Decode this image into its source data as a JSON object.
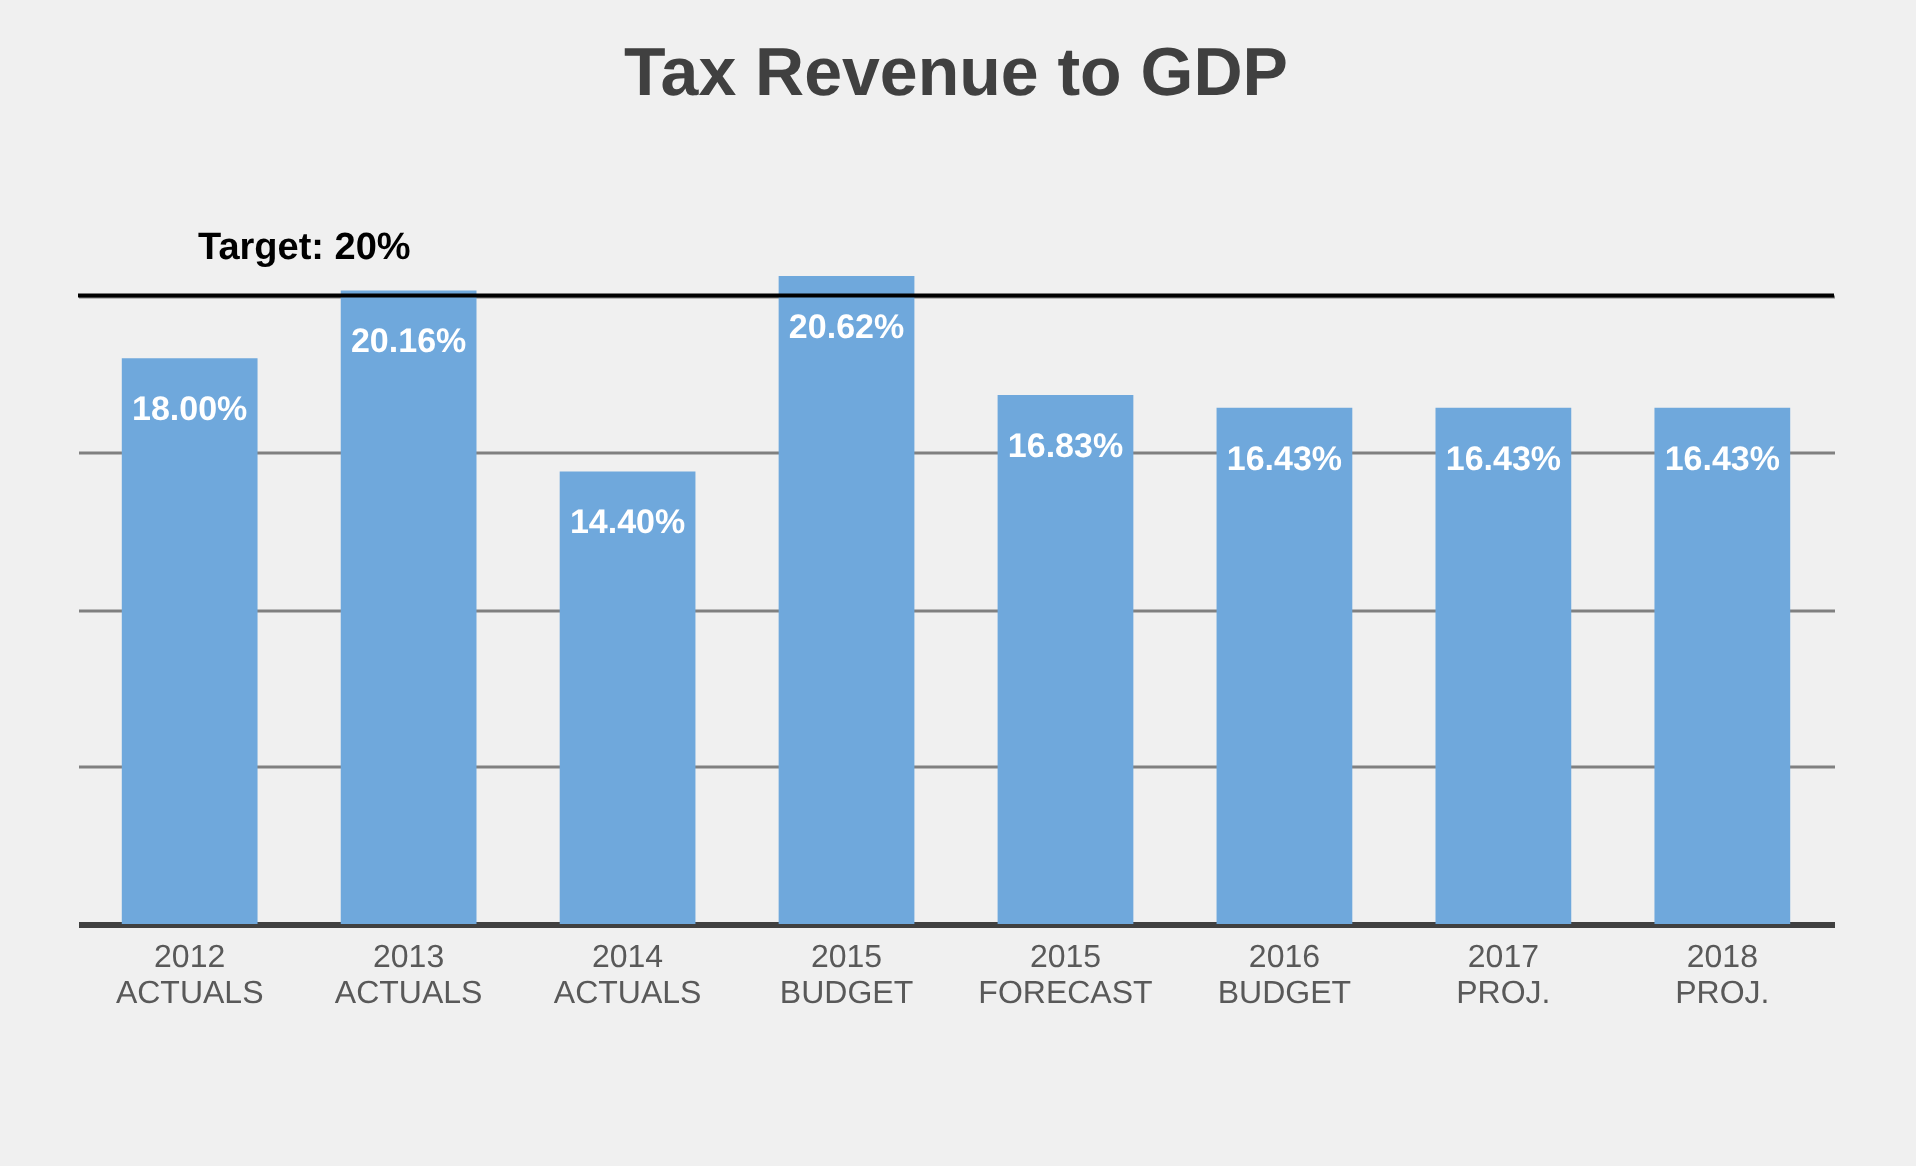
{
  "chart_data": {
    "type": "bar",
    "title": "Tax Revenue to GDP",
    "categories": [
      "2012 ACTUALS",
      "2013 ACTUALS",
      "2014 ACTUALS",
      "2015 BUDGET",
      "2015 FORECAST",
      "2016 BUDGET",
      "2017 PROJ.",
      "2018 PROJ."
    ],
    "values": [
      18.0,
      20.16,
      14.4,
      20.62,
      16.83,
      16.43,
      16.43,
      16.43
    ],
    "value_labels": [
      "18.00%",
      "20.16%",
      "14.40%",
      "20.62%",
      "16.83%",
      "16.43%",
      "16.43%",
      "16.43%"
    ],
    "color": "#6fa8dc",
    "yticks": [
      {
        "value": 0,
        "label": null
      },
      {
        "value": 5,
        "label": null
      },
      {
        "value": 10,
        "label": null
      },
      {
        "value": 15,
        "label": null
      },
      {
        "value": 20,
        "label": null
      }
    ],
    "grid": "y",
    "tick_labels": "x",
    "ref_lines": [
      {
        "axis": "y",
        "value": 20,
        "label": "Target: 20%",
        "color": "#000000"
      }
    ]
  }
}
